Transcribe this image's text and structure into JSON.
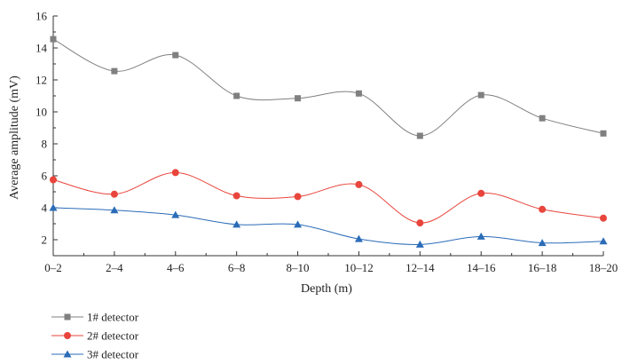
{
  "chart_data": {
    "type": "line",
    "title": "",
    "xlabel": "Depth (m)",
    "ylabel": "Average amplitude (mV)",
    "categories": [
      "0–2",
      "2–4",
      "4–6",
      "6–8",
      "8–10",
      "10–12",
      "12–14",
      "14–16",
      "16–18",
      "18–20"
    ],
    "ylim": [
      1,
      16
    ],
    "yticks": [
      2,
      4,
      6,
      8,
      10,
      12,
      14,
      16
    ],
    "legend_position": "bottom-left",
    "series": [
      {
        "name": "1# detector",
        "color": "#808080",
        "marker": "square",
        "values": [
          14.55,
          12.55,
          13.55,
          11.0,
          10.85,
          11.15,
          8.5,
          11.05,
          9.6,
          8.65
        ]
      },
      {
        "name": "2# detector",
        "color": "#e8453c",
        "marker": "circle",
        "values": [
          5.75,
          4.85,
          6.2,
          4.75,
          4.7,
          5.45,
          3.05,
          4.9,
          3.9,
          3.35
        ]
      },
      {
        "name": "3# detector",
        "color": "#2b6cb8",
        "marker": "triangle",
        "values": [
          4.0,
          3.85,
          3.55,
          2.95,
          2.95,
          2.05,
          1.7,
          2.2,
          1.8,
          1.9
        ]
      }
    ]
  }
}
